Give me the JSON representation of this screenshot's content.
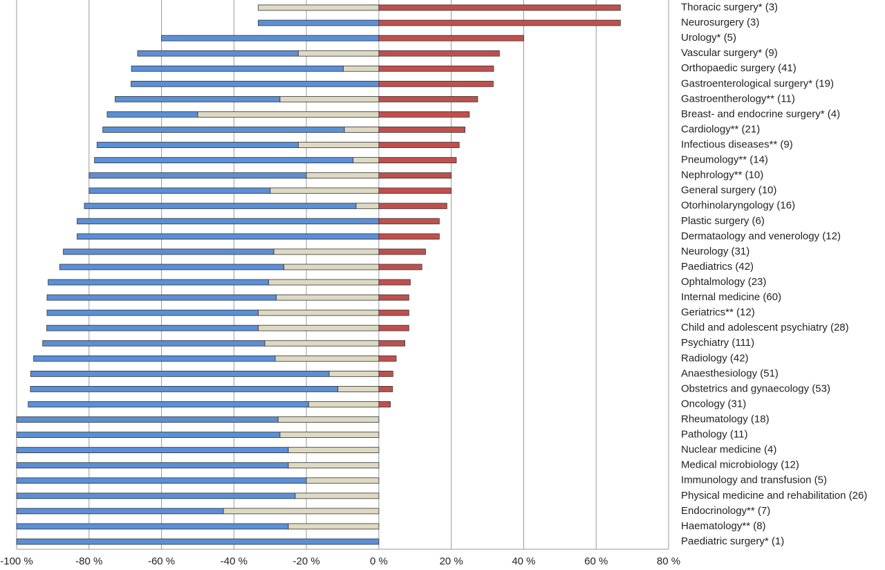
{
  "chart_data": {
    "type": "bar",
    "orientation": "horizontal",
    "stacked": true,
    "grid": true,
    "categories": [
      "Thoracic surgery* (3)",
      "Neurosurgery (3)",
      "Urology* (5)",
      "Vascular surgery* (9)",
      "Orthopaedic surgery (41)",
      "Gastroenterological surgery* (19)",
      "Gastroentherology** (11)",
      "Breast- and endocrine surgery* (4)",
      "Cardiology** (21)",
      "Infectious diseases** (9)",
      "Pneumology** (14)",
      "Nephrology** (10)",
      "General surgery (10)",
      "Otorhinolaryngology (16)",
      "Plastic surgery (6)",
      "Dermataology and venerology (12)",
      "Neurology (31)",
      "Paediatrics (42)",
      "Ophtalmology (23)",
      "Internal medicine (60)",
      "Geriatrics** (12)",
      "Child and adolescent psychiatry (28)",
      "Psychiatry (111)",
      "Radiology (42)",
      "Anaesthesiology (51)",
      "Obstetrics and gynaecology (53)",
      "Oncology (31)",
      "Rheumatology (18)",
      "Pathology (11)",
      "Nuclear medicine (4)",
      "Medical microbiology (12)",
      "Immunology and transfusion (5)",
      "Physical medicine and rehabilitation (26)",
      "Endocrinology** (7)",
      "Haematology** (8)",
      "Paediatric surgery* (1)"
    ],
    "series": [
      {
        "color": "#ddd9c3",
        "values": [
          -33.3,
          0,
          0,
          -22.2,
          -9.8,
          0,
          -27.3,
          -50,
          -9.5,
          -22.2,
          -7.1,
          -20,
          -30,
          -6.3,
          0,
          0,
          -29,
          -26.2,
          -30.4,
          -28.3,
          -33.3,
          -33.3,
          -31.5,
          -28.6,
          -13.7,
          -11.3,
          -19.4,
          -27.8,
          -27.3,
          -25,
          -25,
          -20,
          -23.1,
          -42.9,
          -25,
          0
        ]
      },
      {
        "color": "#5b8fd6",
        "values": [
          0,
          -33.3,
          -60,
          -44.4,
          -58.5,
          -68.4,
          -45.5,
          -25,
          -66.7,
          -55.6,
          -71.4,
          -60,
          -50,
          -75,
          -83.3,
          -83.3,
          -58.1,
          -61.9,
          -60.9,
          -63.3,
          -58.3,
          -58.4,
          -61.3,
          -66.7,
          -82.4,
          -84.9,
          -77.4,
          -72.2,
          -72.7,
          -75,
          -75,
          -80,
          -76.9,
          -57.1,
          -75,
          -100
        ]
      },
      {
        "color": "#c0504d",
        "values": [
          66.7,
          66.7,
          40,
          33.3,
          31.7,
          31.6,
          27.3,
          25,
          23.8,
          22.2,
          21.4,
          20,
          20,
          18.8,
          16.7,
          16.7,
          12.9,
          11.9,
          8.7,
          8.3,
          8.3,
          8.3,
          7.2,
          4.8,
          3.9,
          3.8,
          3.2,
          0,
          0,
          0,
          0,
          0,
          0,
          0,
          0,
          0
        ]
      }
    ],
    "xlim": [
      -100,
      80
    ],
    "xticks": [
      {
        "value": -100,
        "label": "-100 %"
      },
      {
        "value": -80,
        "label": "-80 %"
      },
      {
        "value": -60,
        "label": "-60 %"
      },
      {
        "value": -40,
        "label": "-40 %"
      },
      {
        "value": -20,
        "label": "-20 %"
      },
      {
        "value": 0,
        "label": "0 %"
      },
      {
        "value": 20,
        "label": "20 %"
      },
      {
        "value": 40,
        "label": "40 %"
      },
      {
        "value": 60,
        "label": "60 %"
      },
      {
        "value": 80,
        "label": "80 %"
      }
    ]
  }
}
